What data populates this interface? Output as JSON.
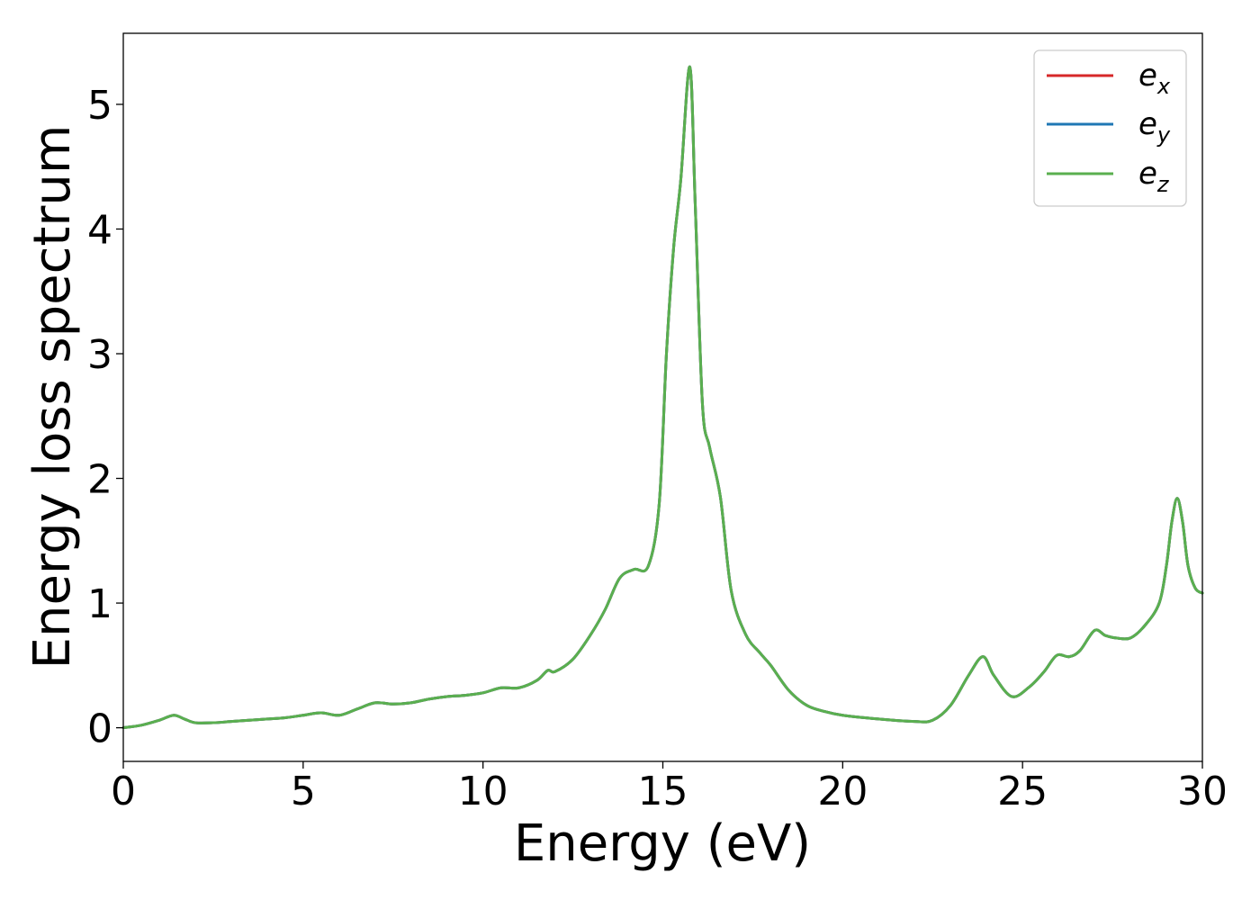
{
  "chart_data": {
    "type": "line",
    "title": "",
    "xlabel": "Energy (eV)",
    "ylabel": "Energy loss spectrum",
    "xlim": [
      0,
      30
    ],
    "ylim": [
      -0.27,
      5.57
    ],
    "xticks": [
      0,
      5,
      10,
      15,
      20,
      25,
      30
    ],
    "yticks": [
      0,
      1,
      2,
      3,
      4,
      5
    ],
    "grid": false,
    "legend_position": "top-right",
    "x": [
      0,
      0.5,
      1.0,
      1.4,
      1.7,
      2.0,
      2.5,
      3.0,
      3.5,
      4.0,
      4.5,
      5.0,
      5.5,
      6.0,
      6.5,
      7.0,
      7.5,
      8.0,
      8.5,
      9.0,
      9.5,
      10.0,
      10.5,
      11.0,
      11.5,
      11.8,
      12.0,
      12.5,
      13.0,
      13.4,
      13.8,
      14.2,
      14.6,
      14.9,
      15.1,
      15.3,
      15.5,
      15.75,
      15.9,
      16.1,
      16.3,
      16.6,
      16.9,
      17.3,
      17.7,
      18.0,
      18.5,
      19.0,
      19.5,
      20.0,
      21.0,
      22.0,
      22.5,
      23.0,
      23.5,
      23.9,
      24.2,
      24.7,
      25.2,
      25.6,
      25.95,
      26.3,
      26.6,
      27.0,
      27.3,
      27.6,
      28.0,
      28.4,
      28.8,
      29.0,
      29.15,
      29.3,
      29.45,
      29.6,
      29.8,
      30.0
    ],
    "series": [
      {
        "name_main": "e",
        "name_sub": "x",
        "color": "#d62728",
        "values": [
          0.0,
          0.02,
          0.06,
          0.1,
          0.07,
          0.04,
          0.04,
          0.05,
          0.06,
          0.07,
          0.08,
          0.1,
          0.12,
          0.1,
          0.15,
          0.2,
          0.19,
          0.2,
          0.23,
          0.25,
          0.26,
          0.28,
          0.32,
          0.32,
          0.38,
          0.46,
          0.45,
          0.55,
          0.75,
          0.95,
          1.2,
          1.27,
          1.3,
          1.8,
          3.0,
          3.85,
          4.4,
          5.3,
          4.2,
          2.6,
          2.25,
          1.85,
          1.1,
          0.75,
          0.6,
          0.5,
          0.3,
          0.18,
          0.13,
          0.1,
          0.07,
          0.05,
          0.06,
          0.18,
          0.42,
          0.57,
          0.42,
          0.25,
          0.33,
          0.45,
          0.58,
          0.57,
          0.62,
          0.78,
          0.74,
          0.72,
          0.72,
          0.82,
          1.0,
          1.3,
          1.65,
          1.84,
          1.65,
          1.3,
          1.12,
          1.08
        ]
      },
      {
        "name_main": "e",
        "name_sub": "y",
        "color": "#1f77b4",
        "values": [
          0.0,
          0.02,
          0.06,
          0.1,
          0.07,
          0.04,
          0.04,
          0.05,
          0.06,
          0.07,
          0.08,
          0.1,
          0.12,
          0.1,
          0.15,
          0.2,
          0.19,
          0.2,
          0.23,
          0.25,
          0.26,
          0.28,
          0.32,
          0.32,
          0.38,
          0.46,
          0.45,
          0.55,
          0.75,
          0.95,
          1.2,
          1.27,
          1.3,
          1.8,
          3.0,
          3.85,
          4.4,
          5.3,
          4.2,
          2.6,
          2.25,
          1.85,
          1.1,
          0.75,
          0.6,
          0.5,
          0.3,
          0.18,
          0.13,
          0.1,
          0.07,
          0.05,
          0.06,
          0.18,
          0.42,
          0.57,
          0.42,
          0.25,
          0.33,
          0.45,
          0.58,
          0.57,
          0.62,
          0.78,
          0.74,
          0.72,
          0.72,
          0.82,
          1.0,
          1.3,
          1.65,
          1.84,
          1.65,
          1.3,
          1.12,
          1.08
        ]
      },
      {
        "name_main": "e",
        "name_sub": "z",
        "color": "#5aaf4f",
        "values": [
          0.0,
          0.02,
          0.06,
          0.1,
          0.07,
          0.04,
          0.04,
          0.05,
          0.06,
          0.07,
          0.08,
          0.1,
          0.12,
          0.1,
          0.15,
          0.2,
          0.19,
          0.2,
          0.23,
          0.25,
          0.26,
          0.28,
          0.32,
          0.32,
          0.38,
          0.46,
          0.45,
          0.55,
          0.75,
          0.95,
          1.2,
          1.27,
          1.3,
          1.8,
          3.0,
          3.85,
          4.4,
          5.3,
          4.2,
          2.6,
          2.25,
          1.85,
          1.1,
          0.75,
          0.6,
          0.5,
          0.3,
          0.18,
          0.13,
          0.1,
          0.07,
          0.05,
          0.06,
          0.18,
          0.42,
          0.57,
          0.42,
          0.25,
          0.33,
          0.45,
          0.58,
          0.57,
          0.62,
          0.78,
          0.74,
          0.72,
          0.72,
          0.82,
          1.0,
          1.3,
          1.65,
          1.84,
          1.65,
          1.3,
          1.12,
          1.08
        ]
      }
    ]
  }
}
